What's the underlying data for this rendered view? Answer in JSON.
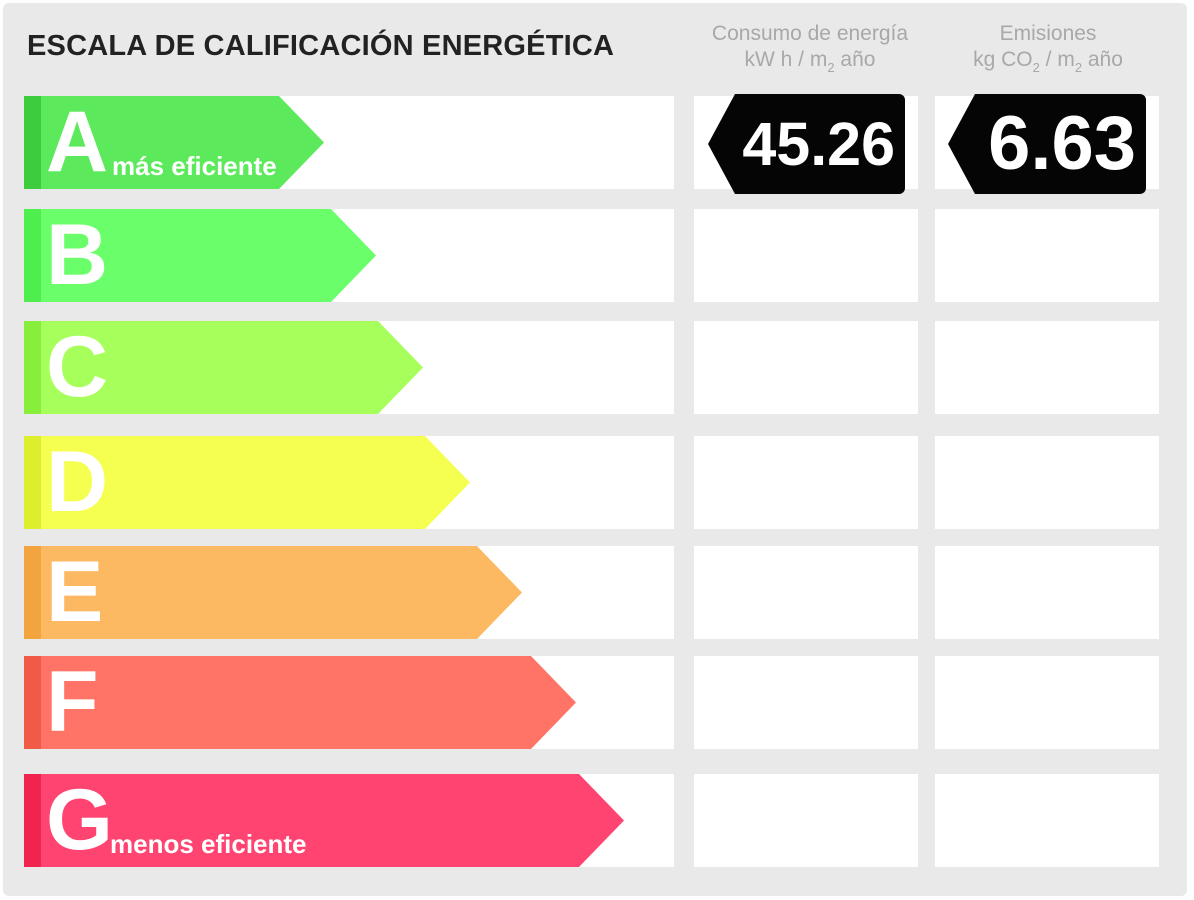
{
  "title": "ESCALA DE CALIFICACIÓN ENERGÉTICA",
  "columns": {
    "consumo": {
      "line1": "Consumo de energía",
      "unit_prefix": "kW h / m",
      "unit_sub": "2",
      "unit_suffix": " año"
    },
    "emisiones": {
      "line1": "Emisiones",
      "unit_prefix": "kg CO",
      "unit_sub": "2",
      "unit_mid": " / m",
      "unit_sub2": "2",
      "unit_suffix": " año"
    }
  },
  "rating_levels": [
    {
      "letter": "A",
      "sublabel": "más eficiente",
      "color": "#5ce95c",
      "edge_color": "#3ccc3c"
    },
    {
      "letter": "B",
      "sublabel": "",
      "color": "#6aff6a",
      "edge_color": "#4eee4e"
    },
    {
      "letter": "C",
      "sublabel": "",
      "color": "#a6ff5a",
      "edge_color": "#88ee3c"
    },
    {
      "letter": "D",
      "sublabel": "",
      "color": "#f4ff50",
      "edge_color": "#dcee2c"
    },
    {
      "letter": "E",
      "sublabel": "",
      "color": "#fdb962",
      "edge_color": "#f2a43e"
    },
    {
      "letter": "F",
      "sublabel": "",
      "color": "#ff7466",
      "edge_color": "#f25a48"
    },
    {
      "letter": "G",
      "sublabel": "menos eficiente",
      "color": "#ff4472",
      "edge_color": "#f0244e"
    }
  ],
  "results": {
    "consumo_value": "45.26",
    "emisiones_value": "6.63",
    "rating": "A"
  }
}
